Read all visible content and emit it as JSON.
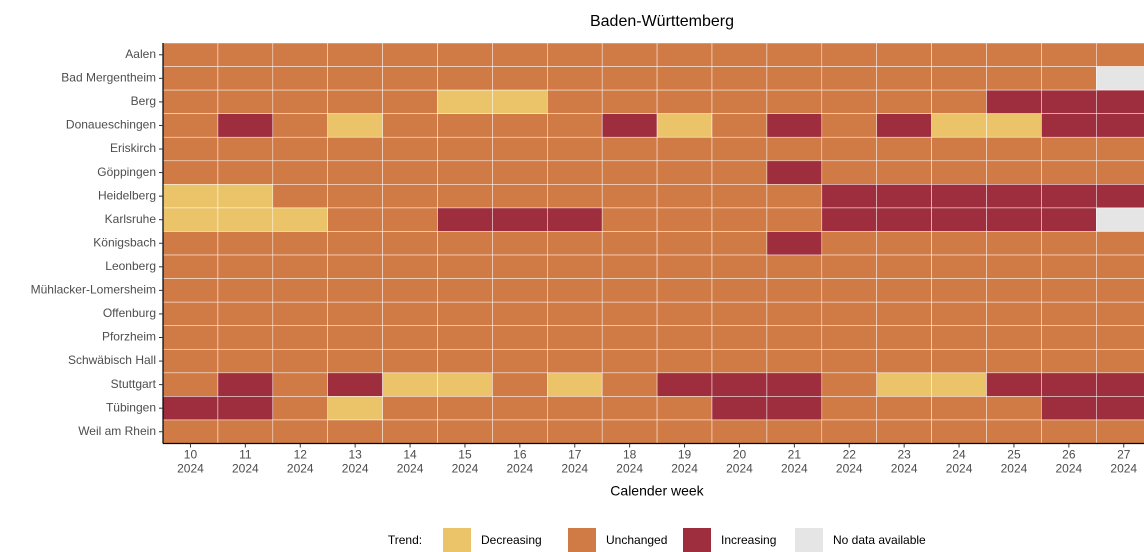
{
  "chart_data": {
    "type": "heatmap",
    "title": "Baden-Württemberg",
    "xlabel": "Calender week",
    "x_categories": [
      [
        "10",
        "2024"
      ],
      [
        "11",
        "2024"
      ],
      [
        "12",
        "2024"
      ],
      [
        "13",
        "2024"
      ],
      [
        "14",
        "2024"
      ],
      [
        "15",
        "2024"
      ],
      [
        "16",
        "2024"
      ],
      [
        "17",
        "2024"
      ],
      [
        "18",
        "2024"
      ],
      [
        "19",
        "2024"
      ],
      [
        "20",
        "2024"
      ],
      [
        "21",
        "2024"
      ],
      [
        "22",
        "2024"
      ],
      [
        "23",
        "2024"
      ],
      [
        "24",
        "2024"
      ],
      [
        "25",
        "2024"
      ],
      [
        "26",
        "2024"
      ],
      [
        "27",
        "2024"
      ]
    ],
    "y_categories": [
      "Aalen",
      "Bad Mergentheim",
      "Berg",
      "Donaueschingen",
      "Eriskirch",
      "Göppingen",
      "Heidelberg",
      "Karlsruhe",
      "Königsbach",
      "Leonberg",
      "Mühlacker-Lomersheim",
      "Offenburg",
      "Pforzheim",
      "Schwäbisch Hall",
      "Stuttgart",
      "Tübingen",
      "Weil am Rhein"
    ],
    "legend_title": "Trend:",
    "legend": [
      {
        "name": "Decreasing",
        "color": "#ebc46a"
      },
      {
        "name": "Unchanged",
        "color": "#d07a45"
      },
      {
        "name": "Increasing",
        "color": "#9e2d3e"
      },
      {
        "name": "No data available",
        "color": "#e5e5e5"
      }
    ],
    "values": [
      [
        "Unchanged",
        "Unchanged",
        "Unchanged",
        "Unchanged",
        "Unchanged",
        "Unchanged",
        "Unchanged",
        "Unchanged",
        "Unchanged",
        "Unchanged",
        "Unchanged",
        "Unchanged",
        "Unchanged",
        "Unchanged",
        "Unchanged",
        "Unchanged",
        "Unchanged",
        "Unchanged"
      ],
      [
        "Unchanged",
        "Unchanged",
        "Unchanged",
        "Unchanged",
        "Unchanged",
        "Unchanged",
        "Unchanged",
        "Unchanged",
        "Unchanged",
        "Unchanged",
        "Unchanged",
        "Unchanged",
        "Unchanged",
        "Unchanged",
        "Unchanged",
        "Unchanged",
        "Unchanged",
        "No data available"
      ],
      [
        "Unchanged",
        "Unchanged",
        "Unchanged",
        "Unchanged",
        "Unchanged",
        "Decreasing",
        "Decreasing",
        "Unchanged",
        "Unchanged",
        "Unchanged",
        "Unchanged",
        "Unchanged",
        "Unchanged",
        "Unchanged",
        "Unchanged",
        "Increasing",
        "Increasing",
        "Increasing"
      ],
      [
        "Unchanged",
        "Increasing",
        "Unchanged",
        "Decreasing",
        "Unchanged",
        "Unchanged",
        "Unchanged",
        "Unchanged",
        "Increasing",
        "Decreasing",
        "Unchanged",
        "Increasing",
        "Unchanged",
        "Increasing",
        "Decreasing",
        "Decreasing",
        "Increasing",
        "Increasing"
      ],
      [
        "Unchanged",
        "Unchanged",
        "Unchanged",
        "Unchanged",
        "Unchanged",
        "Unchanged",
        "Unchanged",
        "Unchanged",
        "Unchanged",
        "Unchanged",
        "Unchanged",
        "Unchanged",
        "Unchanged",
        "Unchanged",
        "Unchanged",
        "Unchanged",
        "Unchanged",
        "Unchanged"
      ],
      [
        "Unchanged",
        "Unchanged",
        "Unchanged",
        "Unchanged",
        "Unchanged",
        "Unchanged",
        "Unchanged",
        "Unchanged",
        "Unchanged",
        "Unchanged",
        "Unchanged",
        "Increasing",
        "Unchanged",
        "Unchanged",
        "Unchanged",
        "Unchanged",
        "Unchanged",
        "Unchanged"
      ],
      [
        "Decreasing",
        "Decreasing",
        "Unchanged",
        "Unchanged",
        "Unchanged",
        "Unchanged",
        "Unchanged",
        "Unchanged",
        "Unchanged",
        "Unchanged",
        "Unchanged",
        "Unchanged",
        "Increasing",
        "Increasing",
        "Increasing",
        "Increasing",
        "Increasing",
        "Increasing"
      ],
      [
        "Decreasing",
        "Decreasing",
        "Decreasing",
        "Unchanged",
        "Unchanged",
        "Increasing",
        "Increasing",
        "Increasing",
        "Unchanged",
        "Unchanged",
        "Unchanged",
        "Unchanged",
        "Increasing",
        "Increasing",
        "Increasing",
        "Increasing",
        "Increasing",
        "No data available"
      ],
      [
        "Unchanged",
        "Unchanged",
        "Unchanged",
        "Unchanged",
        "Unchanged",
        "Unchanged",
        "Unchanged",
        "Unchanged",
        "Unchanged",
        "Unchanged",
        "Unchanged",
        "Increasing",
        "Unchanged",
        "Unchanged",
        "Unchanged",
        "Unchanged",
        "Unchanged",
        "Unchanged"
      ],
      [
        "Unchanged",
        "Unchanged",
        "Unchanged",
        "Unchanged",
        "Unchanged",
        "Unchanged",
        "Unchanged",
        "Unchanged",
        "Unchanged",
        "Unchanged",
        "Unchanged",
        "Unchanged",
        "Unchanged",
        "Unchanged",
        "Unchanged",
        "Unchanged",
        "Unchanged",
        "Unchanged"
      ],
      [
        "Unchanged",
        "Unchanged",
        "Unchanged",
        "Unchanged",
        "Unchanged",
        "Unchanged",
        "Unchanged",
        "Unchanged",
        "Unchanged",
        "Unchanged",
        "Unchanged",
        "Unchanged",
        "Unchanged",
        "Unchanged",
        "Unchanged",
        "Unchanged",
        "Unchanged",
        "Unchanged"
      ],
      [
        "Unchanged",
        "Unchanged",
        "Unchanged",
        "Unchanged",
        "Unchanged",
        "Unchanged",
        "Unchanged",
        "Unchanged",
        "Unchanged",
        "Unchanged",
        "Unchanged",
        "Unchanged",
        "Unchanged",
        "Unchanged",
        "Unchanged",
        "Unchanged",
        "Unchanged",
        "Unchanged"
      ],
      [
        "Unchanged",
        "Unchanged",
        "Unchanged",
        "Unchanged",
        "Unchanged",
        "Unchanged",
        "Unchanged",
        "Unchanged",
        "Unchanged",
        "Unchanged",
        "Unchanged",
        "Unchanged",
        "Unchanged",
        "Unchanged",
        "Unchanged",
        "Unchanged",
        "Unchanged",
        "Unchanged"
      ],
      [
        "Unchanged",
        "Unchanged",
        "Unchanged",
        "Unchanged",
        "Unchanged",
        "Unchanged",
        "Unchanged",
        "Unchanged",
        "Unchanged",
        "Unchanged",
        "Unchanged",
        "Unchanged",
        "Unchanged",
        "Unchanged",
        "Unchanged",
        "Unchanged",
        "Unchanged",
        "Unchanged"
      ],
      [
        "Unchanged",
        "Increasing",
        "Unchanged",
        "Increasing",
        "Decreasing",
        "Decreasing",
        "Unchanged",
        "Decreasing",
        "Unchanged",
        "Increasing",
        "Increasing",
        "Increasing",
        "Unchanged",
        "Decreasing",
        "Decreasing",
        "Increasing",
        "Increasing",
        "Increasing"
      ],
      [
        "Increasing",
        "Increasing",
        "Unchanged",
        "Decreasing",
        "Unchanged",
        "Unchanged",
        "Unchanged",
        "Unchanged",
        "Unchanged",
        "Unchanged",
        "Increasing",
        "Increasing",
        "Unchanged",
        "Unchanged",
        "Unchanged",
        "Unchanged",
        "Increasing",
        "Increasing"
      ],
      [
        "Unchanged",
        "Unchanged",
        "Unchanged",
        "Unchanged",
        "Unchanged",
        "Unchanged",
        "Unchanged",
        "Unchanged",
        "Unchanged",
        "Unchanged",
        "Unchanged",
        "Unchanged",
        "Unchanged",
        "Unchanged",
        "Unchanged",
        "Unchanged",
        "Unchanged",
        "Unchanged"
      ]
    ]
  }
}
